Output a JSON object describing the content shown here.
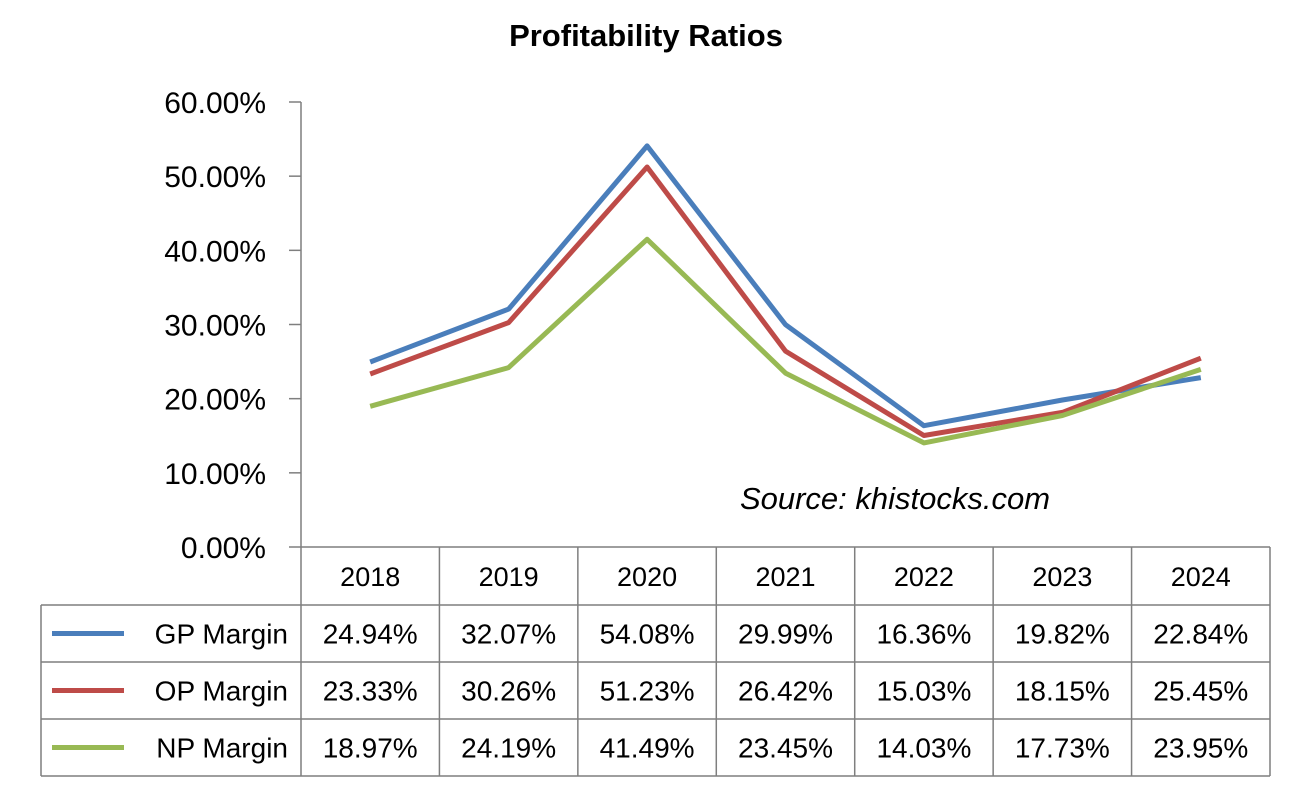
{
  "chart_data": {
    "type": "line",
    "title": "Profitability Ratios",
    "categories": [
      "2018",
      "2019",
      "2020",
      "2021",
      "2022",
      "2023",
      "2024"
    ],
    "ylim": [
      0,
      60
    ],
    "yticks": [
      "0.00%",
      "10.00%",
      "20.00%",
      "30.00%",
      "40.00%",
      "50.00%",
      "60.00%"
    ],
    "grid": false,
    "legend": "data-table",
    "annotation": "Source: khistocks.com",
    "series": [
      {
        "name": "GP Margin",
        "color": "#4a7ebb",
        "values": [
          24.94,
          32.07,
          54.08,
          29.99,
          16.36,
          19.82,
          22.84
        ],
        "labels": [
          "24.94%",
          "32.07%",
          "54.08%",
          "29.99%",
          "16.36%",
          "19.82%",
          "22.84%"
        ]
      },
      {
        "name": "OP Margin",
        "color": "#be4b48",
        "values": [
          23.33,
          30.26,
          51.23,
          26.42,
          15.03,
          18.15,
          25.45
        ],
        "labels": [
          "23.33%",
          "30.26%",
          "51.23%",
          "26.42%",
          "15.03%",
          "18.15%",
          "25.45%"
        ]
      },
      {
        "name": "NP Margin",
        "color": "#98b954",
        "values": [
          18.97,
          24.19,
          41.49,
          23.45,
          14.03,
          17.73,
          23.95
        ],
        "labels": [
          "18.97%",
          "24.19%",
          "41.49%",
          "23.45%",
          "14.03%",
          "17.73%",
          "23.95%"
        ]
      }
    ]
  }
}
